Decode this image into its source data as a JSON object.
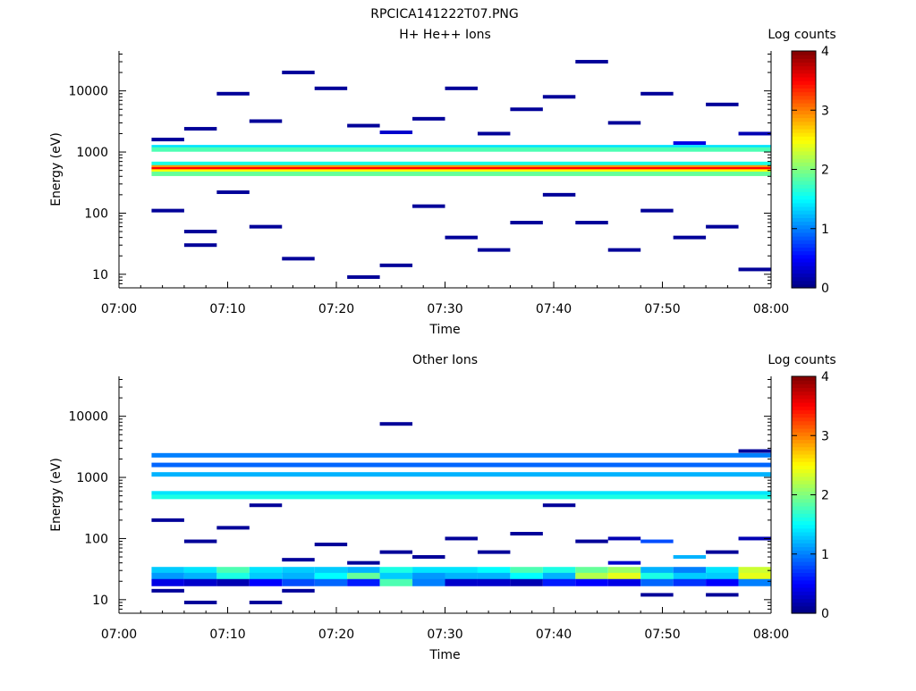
{
  "figure_title": "RPCICA141222T07.PNG",
  "colorbar": {
    "label": "Log counts",
    "ticks": [
      "0",
      "1",
      "2",
      "3",
      "4"
    ],
    "range": [
      0,
      4
    ],
    "colormap": "jet"
  },
  "chart_data": [
    {
      "type": "heatmap",
      "title": "H+ He++ Ions",
      "xlabel": "Time",
      "ylabel": "Energy (eV)",
      "x_ticks": [
        "07:00",
        "07:10",
        "07:20",
        "07:30",
        "07:40",
        "07:50",
        "08:00"
      ],
      "x_range": [
        "07:00",
        "08:00"
      ],
      "y_scale": "log",
      "y_range": [
        6,
        45000
      ],
      "y_ticks": [
        "10",
        "100",
        "1000",
        "10000"
      ],
      "time_bins": [
        "07:03",
        "07:06",
        "07:09",
        "07:12",
        "07:15",
        "07:18",
        "07:21",
        "07:24",
        "07:27",
        "07:30",
        "07:33",
        "07:36",
        "07:39",
        "07:42",
        "07:45",
        "07:48",
        "07:51",
        "07:54",
        "07:57"
      ],
      "continuous_bands": [
        {
          "energy": 1200,
          "log_counts": 1.4
        },
        {
          "energy": 1100,
          "log_counts": 1.8
        },
        {
          "energy": 640,
          "log_counts": 1.6
        },
        {
          "energy": 560,
          "log_counts": 2.9
        },
        {
          "energy": 520,
          "log_counts": 3.5
        },
        {
          "energy": 480,
          "log_counts": 2.5
        },
        {
          "energy": 440,
          "log_counts": 1.9
        }
      ],
      "sparse_cells": [
        {
          "time": "07:03",
          "energy": 1600,
          "log_counts": 0.1
        },
        {
          "time": "07:03",
          "energy": 110,
          "log_counts": 0.1
        },
        {
          "time": "07:06",
          "energy": 2400,
          "log_counts": 0.1
        },
        {
          "time": "07:06",
          "energy": 50,
          "log_counts": 0.1
        },
        {
          "time": "07:06",
          "energy": 30,
          "log_counts": 0.1
        },
        {
          "time": "07:09",
          "energy": 9000,
          "log_counts": 0.1
        },
        {
          "time": "07:09",
          "energy": 220,
          "log_counts": 0.1
        },
        {
          "time": "07:12",
          "energy": 3200,
          "log_counts": 0.1
        },
        {
          "time": "07:12",
          "energy": 60,
          "log_counts": 0.1
        },
        {
          "time": "07:15",
          "energy": 20000,
          "log_counts": 0.1
        },
        {
          "time": "07:15",
          "energy": 18,
          "log_counts": 0.1
        },
        {
          "time": "07:18",
          "energy": 11000,
          "log_counts": 0.1
        },
        {
          "time": "07:21",
          "energy": 2700,
          "log_counts": 0.1
        },
        {
          "time": "07:21",
          "energy": 9,
          "log_counts": 0.1
        },
        {
          "time": "07:24",
          "energy": 2100,
          "log_counts": 0.3
        },
        {
          "time": "07:24",
          "energy": 14,
          "log_counts": 0.1
        },
        {
          "time": "07:27",
          "energy": 3500,
          "log_counts": 0.1
        },
        {
          "time": "07:27",
          "energy": 130,
          "log_counts": 0.1
        },
        {
          "time": "07:30",
          "energy": 11000,
          "log_counts": 0.1
        },
        {
          "time": "07:30",
          "energy": 40,
          "log_counts": 0.1
        },
        {
          "time": "07:33",
          "energy": 2000,
          "log_counts": 0.1
        },
        {
          "time": "07:33",
          "energy": 25,
          "log_counts": 0.1
        },
        {
          "time": "07:36",
          "energy": 5000,
          "log_counts": 0.1
        },
        {
          "time": "07:36",
          "energy": 70,
          "log_counts": 0.1
        },
        {
          "time": "07:39",
          "energy": 8000,
          "log_counts": 0.1
        },
        {
          "time": "07:39",
          "energy": 200,
          "log_counts": 0.1
        },
        {
          "time": "07:42",
          "energy": 30000,
          "log_counts": 0.1
        },
        {
          "time": "07:42",
          "energy": 70,
          "log_counts": 0.1
        },
        {
          "time": "07:45",
          "energy": 3000,
          "log_counts": 0.1
        },
        {
          "time": "07:45",
          "energy": 25,
          "log_counts": 0.1
        },
        {
          "time": "07:48",
          "energy": 9000,
          "log_counts": 0.1
        },
        {
          "time": "07:48",
          "energy": 110,
          "log_counts": 0.1
        },
        {
          "time": "07:51",
          "energy": 1400,
          "log_counts": 0.4
        },
        {
          "time": "07:51",
          "energy": 40,
          "log_counts": 0.1
        },
        {
          "time": "07:54",
          "energy": 6000,
          "log_counts": 0.1
        },
        {
          "time": "07:54",
          "energy": 60,
          "log_counts": 0.1
        },
        {
          "time": "07:57",
          "energy": 2000,
          "log_counts": 0.2
        },
        {
          "time": "07:57",
          "energy": 12,
          "log_counts": 0.1
        }
      ]
    },
    {
      "type": "heatmap",
      "title": "Other Ions",
      "xlabel": "Time",
      "ylabel": "Energy (eV)",
      "x_ticks": [
        "07:00",
        "07:10",
        "07:20",
        "07:30",
        "07:40",
        "07:50",
        "08:00"
      ],
      "x_range": [
        "07:00",
        "08:00"
      ],
      "y_scale": "log",
      "y_range": [
        6,
        45000
      ],
      "y_ticks": [
        "10",
        "100",
        "1000",
        "10000"
      ],
      "time_bins": [
        "07:03",
        "07:06",
        "07:09",
        "07:12",
        "07:15",
        "07:18",
        "07:21",
        "07:24",
        "07:27",
        "07:30",
        "07:33",
        "07:36",
        "07:39",
        "07:42",
        "07:45",
        "07:48",
        "07:51",
        "07:54",
        "07:57"
      ],
      "continuous_bands": [
        {
          "energy": 2300,
          "log_counts": 1.0
        },
        {
          "energy": 1600,
          "log_counts": 0.9
        },
        {
          "energy": 1120,
          "log_counts": 1.2
        },
        {
          "energy": 550,
          "log_counts": 1.4
        },
        {
          "energy": 480,
          "log_counts": 1.6
        }
      ],
      "low_energy_rows": [
        {
          "energy": 30,
          "log_counts": [
            1.3,
            1.4,
            1.8,
            1.4,
            1.3,
            1.3,
            1.2,
            1.6,
            1.4,
            1.4,
            1.5,
            1.8,
            1.6,
            1.9,
            2.1,
            1.2,
            1.0,
            1.4,
            2.3
          ]
        },
        {
          "energy": 24,
          "log_counts": [
            1.1,
            1.2,
            1.6,
            1.3,
            1.2,
            1.5,
            1.9,
            1.3,
            1.1,
            1.2,
            1.2,
            1.5,
            1.2,
            2.2,
            2.4,
            1.6,
            1.3,
            1.3,
            2.4
          ]
        },
        {
          "energy": 19,
          "log_counts": [
            0.4,
            0.3,
            0.2,
            0.5,
            0.8,
            0.9,
            0.6,
            1.8,
            1.0,
            0.3,
            0.3,
            0.2,
            0.6,
            0.5,
            0.4,
            0.9,
            0.7,
            0.5,
            1.0
          ]
        }
      ],
      "sparse_cells": [
        {
          "time": "07:03",
          "energy": 14,
          "log_counts": 0.1
        },
        {
          "time": "07:03",
          "energy": 200,
          "log_counts": 0.1
        },
        {
          "time": "07:06",
          "energy": 9,
          "log_counts": 0.1
        },
        {
          "time": "07:06",
          "energy": 90,
          "log_counts": 0.1
        },
        {
          "time": "07:09",
          "energy": 150,
          "log_counts": 0.1
        },
        {
          "time": "07:12",
          "energy": 9,
          "log_counts": 0.1
        },
        {
          "time": "07:12",
          "energy": 350,
          "log_counts": 0.1
        },
        {
          "time": "07:15",
          "energy": 14,
          "log_counts": 0.1
        },
        {
          "time": "07:15",
          "energy": 45,
          "log_counts": 0.1
        },
        {
          "time": "07:18",
          "energy": 80,
          "log_counts": 0.1
        },
        {
          "time": "07:21",
          "energy": 40,
          "log_counts": 0.1
        },
        {
          "time": "07:24",
          "energy": 7500,
          "log_counts": 0.1
        },
        {
          "time": "07:24",
          "energy": 60,
          "log_counts": 0.1
        },
        {
          "time": "07:27",
          "energy": 50,
          "log_counts": 0.1
        },
        {
          "time": "07:30",
          "energy": 100,
          "log_counts": 0.1
        },
        {
          "time": "07:33",
          "energy": 60,
          "log_counts": 0.1
        },
        {
          "time": "07:36",
          "energy": 120,
          "log_counts": 0.1
        },
        {
          "time": "07:39",
          "energy": 350,
          "log_counts": 0.1
        },
        {
          "time": "07:42",
          "energy": 90,
          "log_counts": 0.1
        },
        {
          "time": "07:45",
          "energy": 100,
          "log_counts": 0.2
        },
        {
          "time": "07:45",
          "energy": 40,
          "log_counts": 0.3
        },
        {
          "time": "07:48",
          "energy": 12,
          "log_counts": 0.1
        },
        {
          "time": "07:48",
          "energy": 90,
          "log_counts": 0.8
        },
        {
          "time": "07:51",
          "energy": 50,
          "log_counts": 1.2
        },
        {
          "time": "07:54",
          "energy": 12,
          "log_counts": 0.1
        },
        {
          "time": "07:54",
          "energy": 60,
          "log_counts": 0.1
        },
        {
          "time": "07:57",
          "energy": 2700,
          "log_counts": 0.1
        },
        {
          "time": "07:57",
          "energy": 100,
          "log_counts": 0.2
        }
      ]
    }
  ]
}
